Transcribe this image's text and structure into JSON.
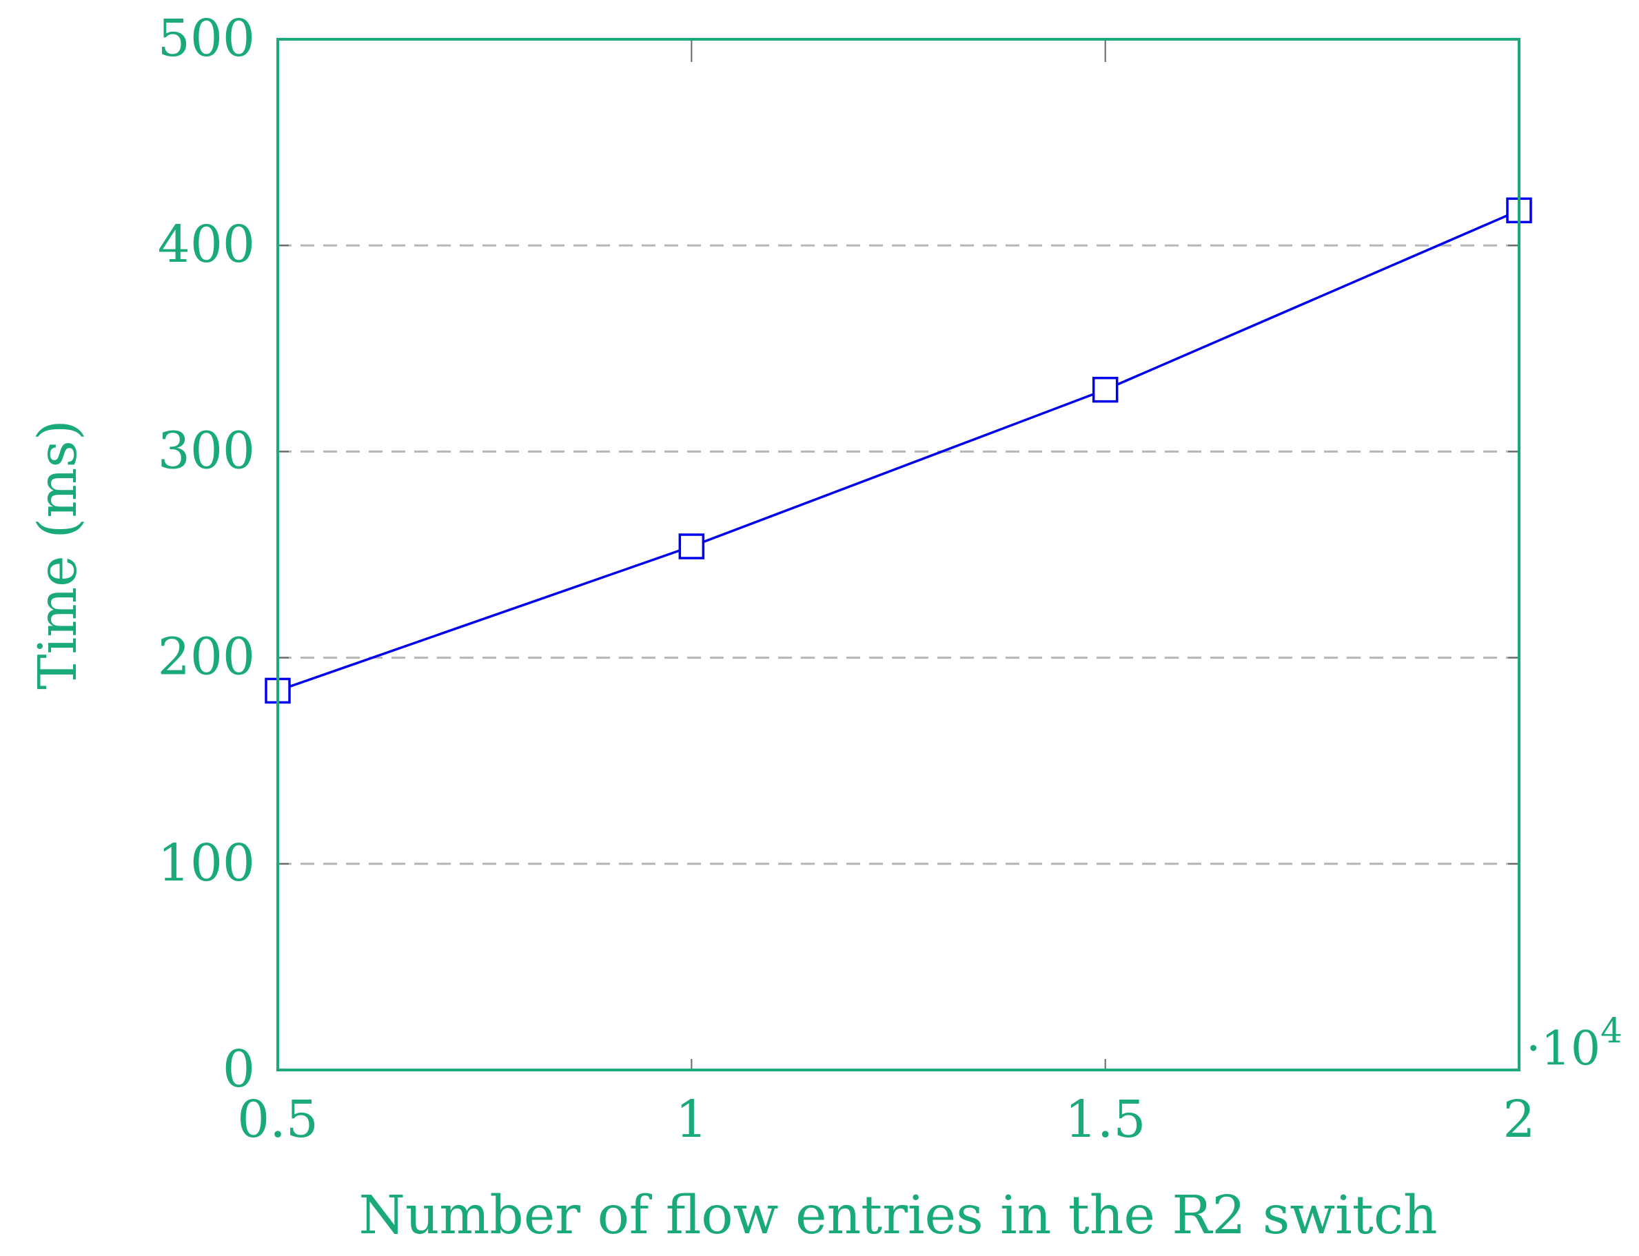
{
  "colors": {
    "axis": "#1aaa7a",
    "series": "#0000ee",
    "grid": "#b5b5b5",
    "tick": "#666666"
  },
  "chart_data": {
    "type": "line",
    "xlabel": "Number of flow entries in the R2 switch",
    "ylabel": "Time (ms)",
    "x_multiplier": "·10",
    "x_multiplier_exp": "4",
    "xlim": [
      0.5,
      2
    ],
    "ylim": [
      0,
      500
    ],
    "xticks": [
      "0.5",
      "1",
      "1.5",
      "2"
    ],
    "xtick_values": [
      0.5,
      1,
      1.5,
      2
    ],
    "yticks": [
      "0",
      "100",
      "200",
      "300",
      "400",
      "500"
    ],
    "ytick_values": [
      0,
      100,
      200,
      300,
      400,
      500
    ],
    "grid": "horizontal dashed",
    "series": [
      {
        "marker": "square",
        "x": [
          0.5,
          1,
          1.5,
          2
        ],
        "y": [
          184,
          254,
          330,
          417
        ]
      }
    ]
  }
}
